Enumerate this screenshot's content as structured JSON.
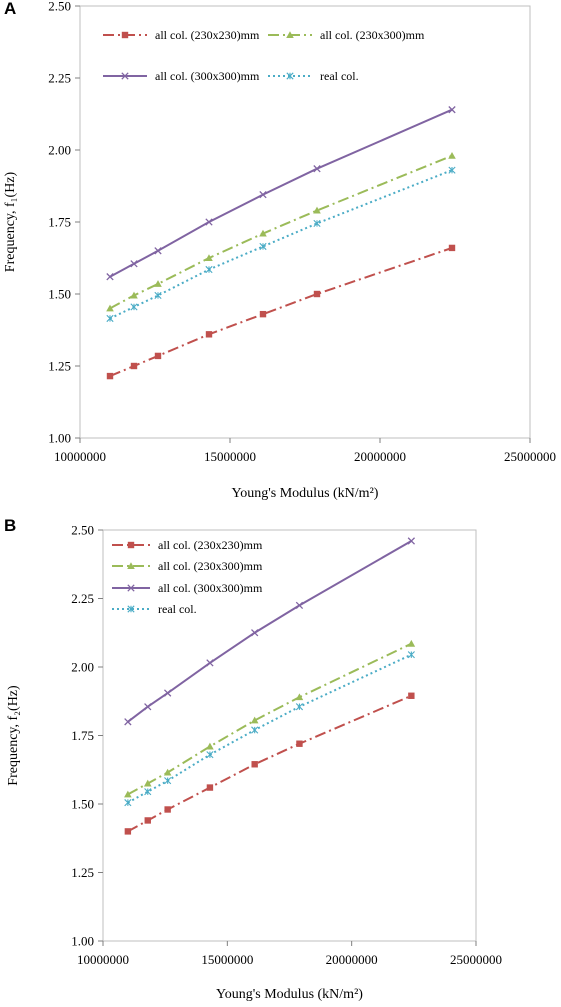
{
  "panels": [
    {
      "letter": "A",
      "chart_data": {
        "type": "line",
        "x": [
          11000000,
          11800000,
          12600000,
          14300000,
          16100000,
          17900000,
          22400000
        ],
        "series": [
          {
            "name": "all col. (230x230)mm",
            "color": "#c0504d",
            "marker": "square",
            "dash": "dashdot",
            "values": [
              1.215,
              1.25,
              1.285,
              1.36,
              1.43,
              1.5,
              1.66
            ]
          },
          {
            "name": "all col. (230x300)mm",
            "color": "#9bbb59",
            "marker": "triangle",
            "dash": "dashdot",
            "values": [
              1.45,
              1.495,
              1.535,
              1.625,
              1.71,
              1.79,
              1.98
            ]
          },
          {
            "name": "all col. (300x300)mm",
            "color": "#8064a2",
            "marker": "x",
            "dash": "solid",
            "values": [
              1.56,
              1.605,
              1.65,
              1.75,
              1.845,
              1.935,
              2.14
            ]
          },
          {
            "name": "real col.",
            "color": "#4bacc6",
            "marker": "star",
            "dash": "dot",
            "values": [
              1.415,
              1.455,
              1.495,
              1.585,
              1.665,
              1.745,
              1.93
            ]
          }
        ],
        "xlabel": "Young's Modulus (kN/m²)",
        "ylabel": "Frequency, f₁(Hz)",
        "xlim": [
          10000000,
          25000000
        ],
        "ylim": [
          1.0,
          2.5
        ],
        "xticks": [
          "10000000",
          "15000000",
          "20000000",
          "25000000"
        ],
        "yticks": [
          "1.00",
          "1.25",
          "1.50",
          "1.75",
          "2.00",
          "2.25",
          "2.50"
        ],
        "legend_placement": "top-left, two columns",
        "grid": false
      }
    },
    {
      "letter": "B",
      "chart_data": {
        "type": "line",
        "x": [
          11000000,
          11800000,
          12600000,
          14300000,
          16100000,
          17900000,
          22400000
        ],
        "series": [
          {
            "name": "all col. (230x230)mm",
            "color": "#c0504d",
            "marker": "square",
            "dash": "dashdot",
            "values": [
              1.4,
              1.44,
              1.48,
              1.56,
              1.645,
              1.72,
              1.895
            ]
          },
          {
            "name": "all col. (230x300)mm",
            "color": "#9bbb59",
            "marker": "triangle",
            "dash": "dashdot",
            "values": [
              1.535,
              1.575,
              1.615,
              1.71,
              1.805,
              1.89,
              2.085
            ]
          },
          {
            "name": "all col. (300x300)mm",
            "color": "#8064a2",
            "marker": "x",
            "dash": "solid",
            "values": [
              1.8,
              1.855,
              1.905,
              2.015,
              2.125,
              2.225,
              2.46
            ]
          },
          {
            "name": "real col.",
            "color": "#4bacc6",
            "marker": "star",
            "dash": "dot",
            "values": [
              1.505,
              1.545,
              1.585,
              1.68,
              1.77,
              1.855,
              2.045
            ]
          }
        ],
        "xlabel": "Young's Modulus (kN/m²)",
        "ylabel": "Frequency, f₂(Hz)",
        "xlim": [
          10000000,
          25000000
        ],
        "ylim": [
          1.0,
          2.5
        ],
        "xticks": [
          "10000000",
          "15000000",
          "20000000",
          "25000000"
        ],
        "yticks": [
          "1.00",
          "1.25",
          "1.50",
          "1.75",
          "2.00",
          "2.25",
          "2.50"
        ],
        "legend_placement": "top-left, single column",
        "grid": false
      }
    }
  ]
}
